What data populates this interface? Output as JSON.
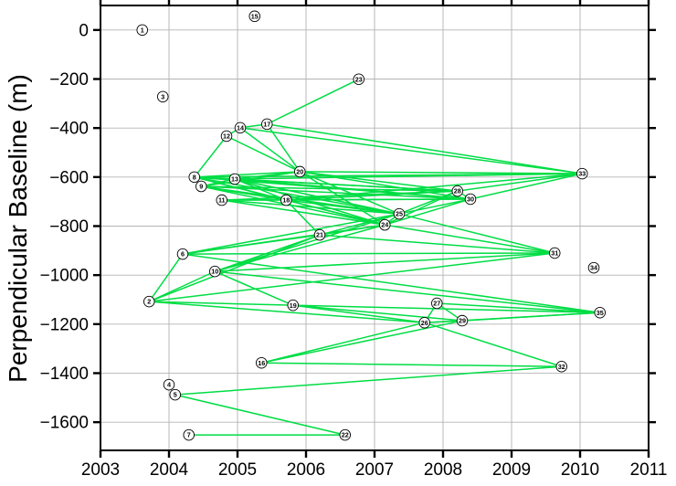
{
  "figure": {
    "background": "#ffffff"
  },
  "chart_data": {
    "type": "scatter",
    "title": "",
    "xlabel": "",
    "ylabel": "Perpendicular Baseline (m)",
    "xlim": [
      2003,
      2011
    ],
    "ylim": [
      100,
      -1715
    ],
    "grid": true,
    "legend": "none",
    "line_color": "#00dd44",
    "grid_color": "#b3b3b3",
    "frame_color": "#000000",
    "marker_fill": "#ffffff",
    "marker_stroke": "#000000",
    "x_ticks": [
      {
        "label": "2003",
        "value": 2003
      },
      {
        "label": "2004",
        "value": 2004
      },
      {
        "label": "2005",
        "value": 2005
      },
      {
        "label": "2006",
        "value": 2006
      },
      {
        "label": "2007",
        "value": 2007
      },
      {
        "label": "2008",
        "value": 2008
      },
      {
        "label": "2009",
        "value": 2009
      },
      {
        "label": "2010",
        "value": 2010
      },
      {
        "label": "2011",
        "value": 2011
      }
    ],
    "y_ticks": [
      {
        "label": "0",
        "value": 0
      },
      {
        "label": "−200",
        "value": -200
      },
      {
        "label": "−400",
        "value": -400
      },
      {
        "label": "−600",
        "value": -600
      },
      {
        "label": "−800",
        "value": -800
      },
      {
        "label": "−1000",
        "value": -1000
      },
      {
        "label": "−1200",
        "value": -1200
      },
      {
        "label": "−1400",
        "value": -1400
      },
      {
        "label": "−1600",
        "value": -1600
      }
    ],
    "points": [
      {
        "id": 1,
        "year": 2003.61,
        "baseline": 0
      },
      {
        "id": 2,
        "year": 2003.71,
        "baseline": -1108
      },
      {
        "id": 3,
        "year": 2003.91,
        "baseline": -272
      },
      {
        "id": 4,
        "year": 2004.0,
        "baseline": -1447
      },
      {
        "id": 5,
        "year": 2004.09,
        "baseline": -1488
      },
      {
        "id": 6,
        "year": 2004.2,
        "baseline": -914
      },
      {
        "id": 7,
        "year": 2004.29,
        "baseline": -1652
      },
      {
        "id": 8,
        "year": 2004.37,
        "baseline": -600
      },
      {
        "id": 9,
        "year": 2004.47,
        "baseline": -638
      },
      {
        "id": 10,
        "year": 2004.67,
        "baseline": -985
      },
      {
        "id": 11,
        "year": 2004.77,
        "baseline": -694
      },
      {
        "id": 12,
        "year": 2004.84,
        "baseline": -433
      },
      {
        "id": 13,
        "year": 2004.96,
        "baseline": -608
      },
      {
        "id": 14,
        "year": 2005.04,
        "baseline": -399
      },
      {
        "id": 15,
        "year": 2005.25,
        "baseline": 56
      },
      {
        "id": 16,
        "year": 2005.35,
        "baseline": -1358
      },
      {
        "id": 17,
        "year": 2005.43,
        "baseline": -384
      },
      {
        "id": 18,
        "year": 2005.71,
        "baseline": -694
      },
      {
        "id": 19,
        "year": 2005.81,
        "baseline": -1123
      },
      {
        "id": 20,
        "year": 2005.91,
        "baseline": -578
      },
      {
        "id": 21,
        "year": 2006.2,
        "baseline": -836
      },
      {
        "id": 22,
        "year": 2006.57,
        "baseline": -1652
      },
      {
        "id": 23,
        "year": 2006.77,
        "baseline": -201
      },
      {
        "id": 24,
        "year": 2007.15,
        "baseline": -795
      },
      {
        "id": 25,
        "year": 2007.36,
        "baseline": -750
      },
      {
        "id": 26,
        "year": 2007.73,
        "baseline": -1194
      },
      {
        "id": 27,
        "year": 2007.91,
        "baseline": -1115
      },
      {
        "id": 28,
        "year": 2008.21,
        "baseline": -657
      },
      {
        "id": 29,
        "year": 2008.28,
        "baseline": -1186
      },
      {
        "id": 30,
        "year": 2008.4,
        "baseline": -690
      },
      {
        "id": 31,
        "year": 2009.63,
        "baseline": -910
      },
      {
        "id": 32,
        "year": 2009.73,
        "baseline": -1373
      },
      {
        "id": 33,
        "year": 2010.03,
        "baseline": -586
      },
      {
        "id": 34,
        "year": 2010.2,
        "baseline": -970
      },
      {
        "id": 35,
        "year": 2010.29,
        "baseline": -1153
      }
    ],
    "pairs": [
      [
        12,
        14
      ],
      [
        8,
        12
      ],
      [
        12,
        20
      ],
      [
        14,
        17
      ],
      [
        14,
        20
      ],
      [
        17,
        20
      ],
      [
        17,
        23
      ],
      [
        14,
        33
      ],
      [
        17,
        33
      ],
      [
        8,
        13
      ],
      [
        8,
        20
      ],
      [
        8,
        18
      ],
      [
        8,
        24
      ],
      [
        8,
        25
      ],
      [
        8,
        28
      ],
      [
        8,
        30
      ],
      [
        8,
        33
      ],
      [
        9,
        13
      ],
      [
        9,
        18
      ],
      [
        9,
        20
      ],
      [
        9,
        24
      ],
      [
        9,
        25
      ],
      [
        9,
        28
      ],
      [
        9,
        30
      ],
      [
        11,
        18
      ],
      [
        11,
        24
      ],
      [
        11,
        25
      ],
      [
        11,
        28
      ],
      [
        11,
        30
      ],
      [
        13,
        18
      ],
      [
        13,
        20
      ],
      [
        13,
        24
      ],
      [
        13,
        25
      ],
      [
        13,
        28
      ],
      [
        13,
        30
      ],
      [
        13,
        33
      ],
      [
        18,
        21
      ],
      [
        18,
        24
      ],
      [
        18,
        25
      ],
      [
        18,
        28
      ],
      [
        18,
        30
      ],
      [
        18,
        33
      ],
      [
        20,
        24
      ],
      [
        20,
        25
      ],
      [
        20,
        28
      ],
      [
        20,
        30
      ],
      [
        20,
        33
      ],
      [
        21,
        24
      ],
      [
        21,
        25
      ],
      [
        21,
        31
      ],
      [
        24,
        25
      ],
      [
        24,
        28
      ],
      [
        24,
        30
      ],
      [
        24,
        31
      ],
      [
        25,
        28
      ],
      [
        25,
        30
      ],
      [
        25,
        31
      ],
      [
        28,
        30
      ],
      [
        28,
        33
      ],
      [
        30,
        33
      ],
      [
        2,
        6
      ],
      [
        2,
        10
      ],
      [
        2,
        21
      ],
      [
        2,
        31
      ],
      [
        2,
        19
      ],
      [
        2,
        26
      ],
      [
        6,
        21
      ],
      [
        6,
        24
      ],
      [
        6,
        25
      ],
      [
        6,
        31
      ],
      [
        6,
        35
      ],
      [
        10,
        19
      ],
      [
        10,
        21
      ],
      [
        10,
        24
      ],
      [
        10,
        25
      ],
      [
        10,
        31
      ],
      [
        10,
        35
      ],
      [
        19,
        26
      ],
      [
        19,
        29
      ],
      [
        19,
        35
      ],
      [
        26,
        27
      ],
      [
        26,
        29
      ],
      [
        27,
        29
      ],
      [
        26,
        32
      ],
      [
        26,
        35
      ],
      [
        27,
        35
      ],
      [
        29,
        35
      ],
      [
        16,
        26
      ],
      [
        16,
        29
      ],
      [
        16,
        32
      ],
      [
        5,
        22
      ],
      [
        5,
        32
      ],
      [
        7,
        22
      ]
    ]
  }
}
